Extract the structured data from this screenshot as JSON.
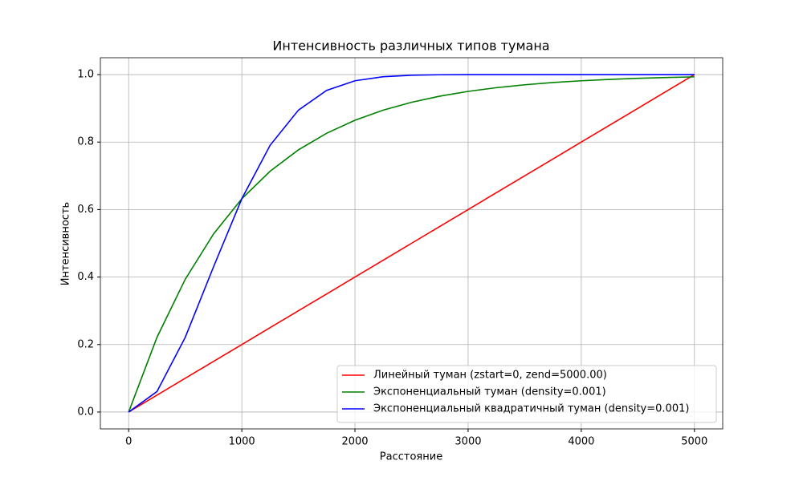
{
  "chart_data": {
    "type": "line",
    "title": "Интенсивность различных типов тумана",
    "x_label": "Расстояние",
    "y_label": "Интенсивность",
    "x": [
      0,
      250,
      500,
      750,
      1000,
      1250,
      1500,
      1750,
      2000,
      2250,
      2500,
      2750,
      3000,
      3250,
      3500,
      3750,
      4000,
      4250,
      4500,
      4750,
      5000
    ],
    "series": [
      {
        "name": "Линейный туман (zstart=0, zend=5000.00)",
        "color": "#ff0000",
        "values": [
          0,
          0.05,
          0.1,
          0.15,
          0.2,
          0.25,
          0.3,
          0.35,
          0.4,
          0.45,
          0.5,
          0.55,
          0.6,
          0.65,
          0.7,
          0.75,
          0.8,
          0.85,
          0.9,
          0.95,
          1.0
        ]
      },
      {
        "name": "Экспоненциальный туман (density=0.001)",
        "color": "#008000",
        "values": [
          0,
          0.2212,
          0.3935,
          0.5276,
          0.6321,
          0.7135,
          0.7769,
          0.8262,
          0.8647,
          0.8946,
          0.9179,
          0.9361,
          0.9502,
          0.9612,
          0.9698,
          0.9765,
          0.9817,
          0.9857,
          0.9889,
          0.9913,
          0.9933
        ]
      },
      {
        "name": "Экспоненциальный квадратичный туман (density=0.001)",
        "color": "#0000ff",
        "values": [
          0,
          0.0606,
          0.2212,
          0.4302,
          0.6321,
          0.7904,
          0.8946,
          0.9532,
          0.9817,
          0.9937,
          0.9981,
          0.9995,
          0.9999,
          1,
          1,
          1,
          1,
          1,
          1,
          1,
          1
        ]
      }
    ],
    "xlim": [
      -250,
      5250
    ],
    "ylim": [
      -0.05,
      1.05
    ],
    "xticks": [
      0,
      1000,
      2000,
      3000,
      4000,
      5000
    ],
    "yticks": [
      {
        "value": 0,
        "label": "0.0"
      },
      {
        "value": 0.2,
        "label": "0.2"
      },
      {
        "value": 0.4,
        "label": "0.4"
      },
      {
        "value": 0.6,
        "label": "0.6"
      },
      {
        "value": 0.8,
        "label": "0.8"
      },
      {
        "value": 1,
        "label": "1.0"
      }
    ],
    "grid": true,
    "legend": "lower right"
  }
}
